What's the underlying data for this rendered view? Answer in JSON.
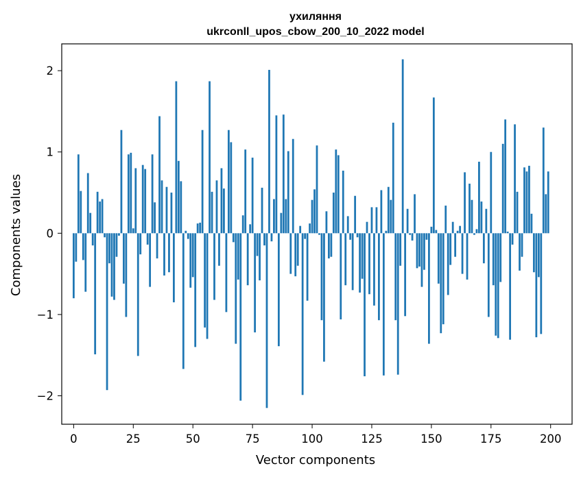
{
  "chart_data": {
    "type": "bar",
    "title_line1": "ухиляння",
    "title_line2": "ukrconll_upos_cbow_200_10_2022 model",
    "xlabel": "Vector components",
    "ylabel": "Components values",
    "xlim": [
      -5,
      209
    ],
    "ylim": [
      -2.35,
      2.33
    ],
    "xticks": [
      0,
      25,
      50,
      75,
      100,
      125,
      150,
      175,
      200
    ],
    "yticks": [
      -2,
      -1,
      0,
      1,
      2
    ],
    "ytick_labels": [
      "−2",
      "−1",
      "0",
      "1",
      "2"
    ],
    "bar_color": "#1f77b4",
    "grid": false,
    "values": [
      -0.8,
      -0.35,
      0.97,
      0.52,
      -0.33,
      -0.72,
      0.74,
      0.25,
      -0.15,
      -1.49,
      0.51,
      0.39,
      0.42,
      -0.05,
      -1.93,
      -0.37,
      -0.78,
      -0.82,
      -0.29,
      -0.03,
      1.27,
      -0.62,
      -1.03,
      0.97,
      0.99,
      0.06,
      0.8,
      -1.51,
      -0.26,
      0.84,
      0.79,
      -0.14,
      -0.66,
      0.97,
      0.38,
      -0.31,
      1.44,
      0.65,
      -0.52,
      0.57,
      -0.48,
      0.5,
      -0.85,
      1.87,
      0.89,
      0.64,
      -1.67,
      0.03,
      -0.07,
      -0.67,
      -0.54,
      -1.4,
      0.12,
      0.13,
      1.27,
      -1.16,
      -1.3,
      1.87,
      0.51,
      -0.82,
      0.65,
      -0.4,
      0.8,
      0.55,
      -0.97,
      1.27,
      1.12,
      -0.11,
      -1.36,
      -0.57,
      -2.06,
      0.22,
      1.03,
      -0.64,
      0.11,
      0.93,
      -1.22,
      -0.28,
      -0.58,
      0.56,
      -0.15,
      -2.15,
      2.01,
      -0.1,
      0.42,
      1.45,
      -1.39,
      0.25,
      1.46,
      0.42,
      1.01,
      -0.5,
      1.16,
      -0.53,
      -0.4,
      0.09,
      -1.99,
      -0.07,
      -0.83,
      0.12,
      0.41,
      0.54,
      1.08,
      -0.02,
      -1.07,
      -1.58,
      0.27,
      -0.31,
      -0.29,
      0.5,
      1.03,
      0.96,
      -1.06,
      0.77,
      -0.64,
      0.21,
      -0.08,
      -0.7,
      0.46,
      -0.05,
      -0.73,
      -0.56,
      -1.76,
      0.14,
      -0.75,
      0.32,
      -0.89,
      0.32,
      -1.07,
      0.53,
      -1.75,
      0.03,
      0.57,
      0.41,
      1.36,
      -1.07,
      -1.74,
      -0.4,
      2.14,
      -1.02,
      0.3,
      -0.02,
      -0.09,
      0.48,
      -0.43,
      -0.41,
      -0.66,
      -0.45,
      -0.08,
      -1.36,
      0.08,
      1.67,
      0.04,
      -0.62,
      -1.23,
      -1.12,
      0.34,
      -0.76,
      -0.39,
      0.14,
      -0.29,
      0.03,
      0.09,
      -0.5,
      0.75,
      -0.57,
      0.61,
      0.41,
      -0.02,
      0.05,
      0.88,
      0.39,
      -0.37,
      0.3,
      -1.03,
      1.0,
      -0.64,
      -1.26,
      -1.29,
      -0.6,
      1.1,
      1.4,
      0.02,
      -1.31,
      -0.14,
      1.34,
      0.51,
      -0.46,
      -0.29,
      0.81,
      0.76,
      0.83,
      0.24,
      -0.48,
      -1.28,
      -0.54,
      -1.24,
      1.3,
      0.48,
      0.76
    ]
  }
}
